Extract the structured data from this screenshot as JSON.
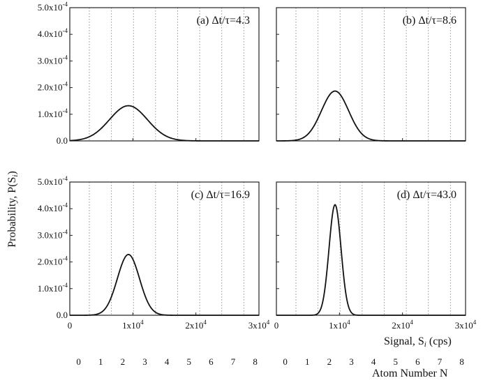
{
  "chart_data": {
    "type": "line",
    "layout": "2x2 panel grid, shared axes",
    "ylabel": "Probability, P(S",
    "ylabel_sub": "i",
    "ylabel_end": ")",
    "xlabel": "Signal, S",
    "xlabel_sub": "i",
    "xlabel_end": " (cps)",
    "atom_axis_label": "Atom Number N",
    "xlim": [
      0,
      30000
    ],
    "ylim": [
      0,
      0.0005
    ],
    "grid": "vertical dotted lines at atom-number positions",
    "y_ticks": [
      {
        "value": 0,
        "base": "0.0",
        "exp": ""
      },
      {
        "value": 0.0001,
        "base": "1.0x10",
        "exp": "-4"
      },
      {
        "value": 0.0002,
        "base": "2.0x10",
        "exp": "-4"
      },
      {
        "value": 0.0003,
        "base": "3.0x10",
        "exp": "-4"
      },
      {
        "value": 0.0004,
        "base": "4.0x10",
        "exp": "-4"
      },
      {
        "value": 0.0005,
        "base": "5.0x10",
        "exp": "-4"
      }
    ],
    "x_ticks": [
      {
        "value": 0,
        "base": "0",
        "exp": ""
      },
      {
        "value": 10000,
        "base": "1x10",
        "exp": "4"
      },
      {
        "value": 20000,
        "base": "2x10",
        "exp": "4"
      },
      {
        "value": 30000,
        "base": "3x10",
        "exp": "4"
      }
    ],
    "atom_ticks": [
      {
        "label": "0",
        "signal": 1400
      },
      {
        "label": "1",
        "signal": 4900
      },
      {
        "label": "2",
        "signal": 8400
      },
      {
        "label": "3",
        "signal": 11900
      },
      {
        "label": "4",
        "signal": 15400
      },
      {
        "label": "5",
        "signal": 18900
      },
      {
        "label": "6",
        "signal": 22400
      },
      {
        "label": "7",
        "signal": 25900
      },
      {
        "label": "8",
        "signal": 29400
      }
    ],
    "gridline_signals": [
      3100,
      6600,
      10100,
      13600,
      17100,
      20600,
      24100,
      27600
    ],
    "panels": [
      {
        "label": "(a) Δt/τ=4.3",
        "peak_x": 9300,
        "peak_y": 0.000132,
        "sigma": 3000
      },
      {
        "label": "(b) Δt/τ=8.6",
        "peak_x": 9300,
        "peak_y": 0.000187,
        "sigma": 2150
      },
      {
        "label": "(c) Δt/τ=16.9",
        "peak_x": 9300,
        "peak_y": 0.000228,
        "sigma": 1750
      },
      {
        "label": "(d) Δt/τ=43.0",
        "peak_x": 9300,
        "peak_y": 0.000415,
        "sigma": 950
      }
    ]
  }
}
